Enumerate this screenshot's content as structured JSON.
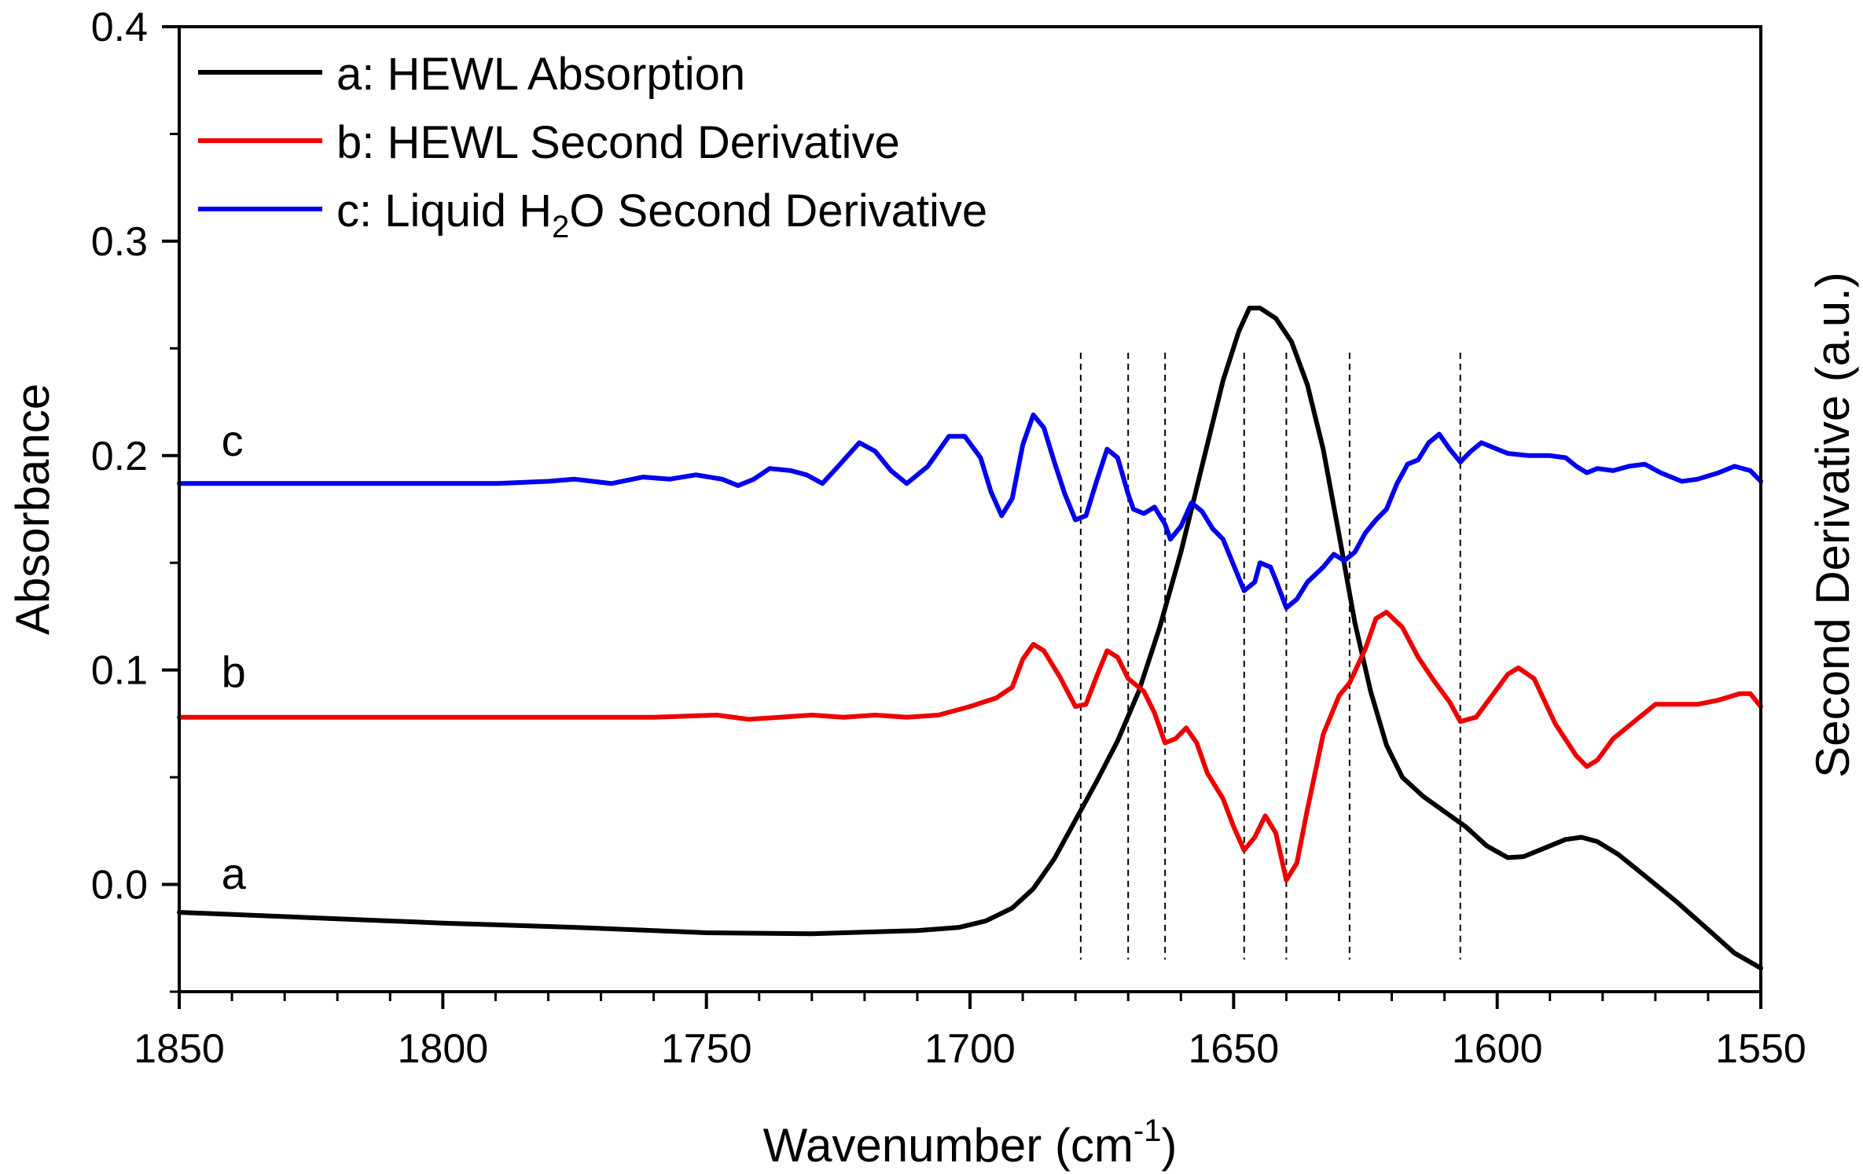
{
  "chart_data": {
    "type": "line",
    "x_axis": {
      "label_main": "Wavenumber (cm",
      "label_sup": "-1",
      "label_end": ")",
      "range": [
        1850,
        1550
      ],
      "reversed": true,
      "ticks": [
        {
          "value": 1850,
          "label": "1850"
        },
        {
          "value": 1800,
          "label": "1800"
        },
        {
          "value": 1750,
          "label": "1750"
        },
        {
          "value": 1700,
          "label": "1700"
        },
        {
          "value": 1650,
          "label": "1650"
        },
        {
          "value": 1600,
          "label": "1600"
        },
        {
          "value": 1550,
          "label": "1550"
        }
      ],
      "minor_tick_step": 10
    },
    "y_axis": {
      "label": "Absorbance",
      "range": [
        -0.05,
        0.4
      ],
      "ticks": [
        {
          "value": 0.0,
          "label": "0.0"
        },
        {
          "value": 0.1,
          "label": "0.1"
        },
        {
          "value": 0.2,
          "label": "0.2"
        },
        {
          "value": 0.3,
          "label": "0.3"
        },
        {
          "value": 0.4,
          "label": "0.4"
        }
      ],
      "minor_tick_step": 0.05
    },
    "y2_axis": {
      "label": "Second Derivative (a.u.)"
    },
    "vertical_reference_lines": [
      1679,
      1670,
      1663,
      1648,
      1640,
      1628,
      1607
    ],
    "vline_range": [
      -0.035,
      0.248
    ],
    "legend": {
      "placement": "top-left",
      "entries": [
        {
          "series": "a",
          "text": "a: HEWL Absorption"
        },
        {
          "series": "b",
          "text": "b: HEWL Second Derivative"
        },
        {
          "series": "c",
          "text_main": "c: Liquid H",
          "text_sub": "2",
          "text_end": "O Second Derivative"
        }
      ]
    },
    "curve_labels": [
      {
        "series": "c",
        "text": "c",
        "x": 1842,
        "y": 0.2
      },
      {
        "series": "b",
        "text": "b",
        "x": 1842,
        "y": 0.092
      },
      {
        "series": "a",
        "text": "a",
        "x": 1842,
        "y": -0.002
      }
    ],
    "series": [
      {
        "name": "a: HEWL Absorption",
        "id": "a",
        "color": "#000000",
        "points": [
          [
            1850,
            -0.013
          ],
          [
            1820,
            -0.016
          ],
          [
            1800,
            -0.018
          ],
          [
            1775,
            -0.02
          ],
          [
            1750,
            -0.0225
          ],
          [
            1730,
            -0.023
          ],
          [
            1710,
            -0.0215
          ],
          [
            1702,
            -0.02
          ],
          [
            1697,
            -0.017
          ],
          [
            1692,
            -0.011
          ],
          [
            1688,
            -0.002
          ],
          [
            1684,
            0.012
          ],
          [
            1680,
            0.03
          ],
          [
            1676,
            0.048
          ],
          [
            1672,
            0.067
          ],
          [
            1668,
            0.09
          ],
          [
            1664,
            0.12
          ],
          [
            1660,
            0.155
          ],
          [
            1656,
            0.195
          ],
          [
            1652,
            0.235
          ],
          [
            1649,
            0.258
          ],
          [
            1647,
            0.2688
          ],
          [
            1645,
            0.2688
          ],
          [
            1642,
            0.264
          ],
          [
            1639,
            0.253
          ],
          [
            1636,
            0.233
          ],
          [
            1633,
            0.203
          ],
          [
            1630,
            0.163
          ],
          [
            1627,
            0.122
          ],
          [
            1624,
            0.09
          ],
          [
            1621,
            0.065
          ],
          [
            1618,
            0.05
          ],
          [
            1614,
            0.041
          ],
          [
            1610,
            0.034
          ],
          [
            1606,
            0.027
          ],
          [
            1602,
            0.018
          ],
          [
            1598,
            0.0125
          ],
          [
            1595,
            0.013
          ],
          [
            1591,
            0.017
          ],
          [
            1587,
            0.021
          ],
          [
            1584,
            0.022
          ],
          [
            1581,
            0.02
          ],
          [
            1577,
            0.014
          ],
          [
            1572,
            0.004
          ],
          [
            1566,
            -0.008
          ],
          [
            1560,
            -0.021
          ],
          [
            1555,
            -0.032
          ],
          [
            1550,
            -0.039
          ]
        ]
      },
      {
        "name": "b: HEWL Second Derivative",
        "id": "b",
        "color": "#ee0000",
        "points": [
          [
            1850,
            0.078
          ],
          [
            1820,
            0.078
          ],
          [
            1790,
            0.078
          ],
          [
            1760,
            0.078
          ],
          [
            1748,
            0.079
          ],
          [
            1742,
            0.077
          ],
          [
            1736,
            0.078
          ],
          [
            1730,
            0.079
          ],
          [
            1724,
            0.078
          ],
          [
            1718,
            0.079
          ],
          [
            1712,
            0.078
          ],
          [
            1706,
            0.079
          ],
          [
            1700,
            0.083
          ],
          [
            1695,
            0.087
          ],
          [
            1692,
            0.092
          ],
          [
            1690,
            0.105
          ],
          [
            1688,
            0.112
          ],
          [
            1686,
            0.109
          ],
          [
            1683,
            0.097
          ],
          [
            1680,
            0.083
          ],
          [
            1678,
            0.084
          ],
          [
            1676,
            0.097
          ],
          [
            1674,
            0.109
          ],
          [
            1672,
            0.106
          ],
          [
            1670,
            0.096
          ],
          [
            1667,
            0.09
          ],
          [
            1665,
            0.08
          ],
          [
            1663,
            0.066
          ],
          [
            1661,
            0.068
          ],
          [
            1659,
            0.073
          ],
          [
            1657,
            0.066
          ],
          [
            1655,
            0.052
          ],
          [
            1652,
            0.04
          ],
          [
            1650,
            0.027
          ],
          [
            1648,
            0.016
          ],
          [
            1646,
            0.022
          ],
          [
            1644,
            0.032
          ],
          [
            1642,
            0.024
          ],
          [
            1640,
            0.002
          ],
          [
            1638,
            0.01
          ],
          [
            1636,
            0.035
          ],
          [
            1633,
            0.07
          ],
          [
            1630,
            0.088
          ],
          [
            1628,
            0.094
          ],
          [
            1625,
            0.11
          ],
          [
            1623,
            0.124
          ],
          [
            1621,
            0.127
          ],
          [
            1618,
            0.12
          ],
          [
            1615,
            0.106
          ],
          [
            1612,
            0.095
          ],
          [
            1609,
            0.085
          ],
          [
            1607,
            0.076
          ],
          [
            1604,
            0.078
          ],
          [
            1601,
            0.088
          ],
          [
            1598,
            0.098
          ],
          [
            1596,
            0.101
          ],
          [
            1593,
            0.096
          ],
          [
            1589,
            0.075
          ],
          [
            1585,
            0.06
          ],
          [
            1583,
            0.055
          ],
          [
            1581,
            0.058
          ],
          [
            1578,
            0.068
          ],
          [
            1574,
            0.076
          ],
          [
            1570,
            0.084
          ],
          [
            1566,
            0.084
          ],
          [
            1562,
            0.084
          ],
          [
            1558,
            0.086
          ],
          [
            1554,
            0.089
          ],
          [
            1552,
            0.089
          ],
          [
            1550,
            0.083
          ]
        ]
      },
      {
        "name": "c: Liquid H2O Second Derivative",
        "id": "c",
        "color": "#0000ee",
        "points": [
          [
            1850,
            0.187
          ],
          [
            1820,
            0.187
          ],
          [
            1790,
            0.187
          ],
          [
            1780,
            0.188
          ],
          [
            1775,
            0.189
          ],
          [
            1768,
            0.187
          ],
          [
            1762,
            0.19
          ],
          [
            1757,
            0.189
          ],
          [
            1752,
            0.191
          ],
          [
            1747,
            0.189
          ],
          [
            1744,
            0.186
          ],
          [
            1741,
            0.189
          ],
          [
            1738,
            0.194
          ],
          [
            1734,
            0.193
          ],
          [
            1731,
            0.191
          ],
          [
            1728,
            0.187
          ],
          [
            1725,
            0.195
          ],
          [
            1721,
            0.206
          ],
          [
            1718,
            0.202
          ],
          [
            1715,
            0.193
          ],
          [
            1712,
            0.187
          ],
          [
            1708,
            0.195
          ],
          [
            1704,
            0.209
          ],
          [
            1701,
            0.209
          ],
          [
            1698,
            0.199
          ],
          [
            1696,
            0.183
          ],
          [
            1694,
            0.172
          ],
          [
            1692,
            0.18
          ],
          [
            1690,
            0.205
          ],
          [
            1688,
            0.219
          ],
          [
            1686,
            0.213
          ],
          [
            1684,
            0.197
          ],
          [
            1682,
            0.182
          ],
          [
            1680,
            0.17
          ],
          [
            1678,
            0.172
          ],
          [
            1676,
            0.188
          ],
          [
            1674,
            0.203
          ],
          [
            1672,
            0.199
          ],
          [
            1670,
            0.182
          ],
          [
            1669,
            0.175
          ],
          [
            1667,
            0.173
          ],
          [
            1665,
            0.176
          ],
          [
            1663,
            0.168
          ],
          [
            1662,
            0.161
          ],
          [
            1660,
            0.167
          ],
          [
            1658,
            0.178
          ],
          [
            1656,
            0.174
          ],
          [
            1654,
            0.166
          ],
          [
            1652,
            0.161
          ],
          [
            1650,
            0.149
          ],
          [
            1648,
            0.137
          ],
          [
            1646,
            0.141
          ],
          [
            1645,
            0.15
          ],
          [
            1643,
            0.148
          ],
          [
            1642,
            0.142
          ],
          [
            1640,
            0.129
          ],
          [
            1638,
            0.133
          ],
          [
            1636,
            0.141
          ],
          [
            1633,
            0.148
          ],
          [
            1631,
            0.154
          ],
          [
            1629,
            0.151
          ],
          [
            1627,
            0.155
          ],
          [
            1625,
            0.164
          ],
          [
            1623,
            0.17
          ],
          [
            1621,
            0.175
          ],
          [
            1619,
            0.187
          ],
          [
            1617,
            0.196
          ],
          [
            1615,
            0.198
          ],
          [
            1613,
            0.206
          ],
          [
            1611,
            0.21
          ],
          [
            1609,
            0.203
          ],
          [
            1607,
            0.197
          ],
          [
            1605,
            0.202
          ],
          [
            1603,
            0.206
          ],
          [
            1601,
            0.204
          ],
          [
            1598,
            0.201
          ],
          [
            1594,
            0.2
          ],
          [
            1590,
            0.2
          ],
          [
            1587,
            0.199
          ],
          [
            1585,
            0.195
          ],
          [
            1583,
            0.192
          ],
          [
            1581,
            0.194
          ],
          [
            1578,
            0.193
          ],
          [
            1575,
            0.195
          ],
          [
            1572,
            0.196
          ],
          [
            1569,
            0.192
          ],
          [
            1565,
            0.188
          ],
          [
            1562,
            0.189
          ],
          [
            1558,
            0.192
          ],
          [
            1555,
            0.195
          ],
          [
            1552,
            0.193
          ],
          [
            1550,
            0.188
          ]
        ]
      }
    ]
  }
}
